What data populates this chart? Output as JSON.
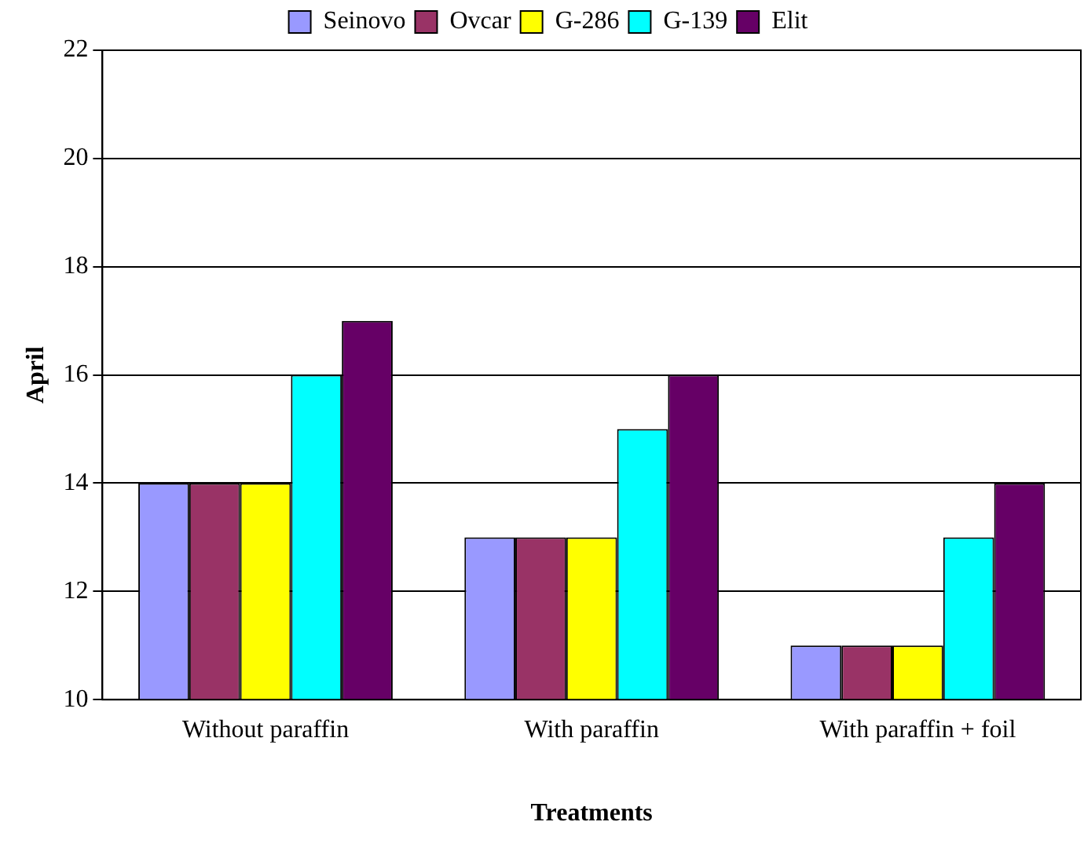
{
  "chart_data": {
    "type": "bar",
    "xlabel": "Treatments",
    "ylabel": "April",
    "categories": [
      "Without paraffin",
      "With paraffin",
      "With paraffin + foil"
    ],
    "series": [
      {
        "name": "Seinovo",
        "color": "#9999ff",
        "values": [
          14,
          13,
          11
        ]
      },
      {
        "name": "Ovcar",
        "color": "#993366",
        "values": [
          14,
          13,
          11
        ]
      },
      {
        "name": "G-286",
        "color": "#ffff00",
        "values": [
          14,
          13,
          11
        ]
      },
      {
        "name": "G-139",
        "color": "#00ffff",
        "values": [
          16,
          15,
          13
        ]
      },
      {
        "name": "Elit",
        "color": "#660066",
        "values": [
          17,
          16,
          14
        ]
      }
    ],
    "ylim": [
      10,
      22
    ],
    "yticks": [
      10,
      12,
      14,
      16,
      18,
      20,
      22
    ],
    "grid": "y",
    "legend": "top"
  }
}
